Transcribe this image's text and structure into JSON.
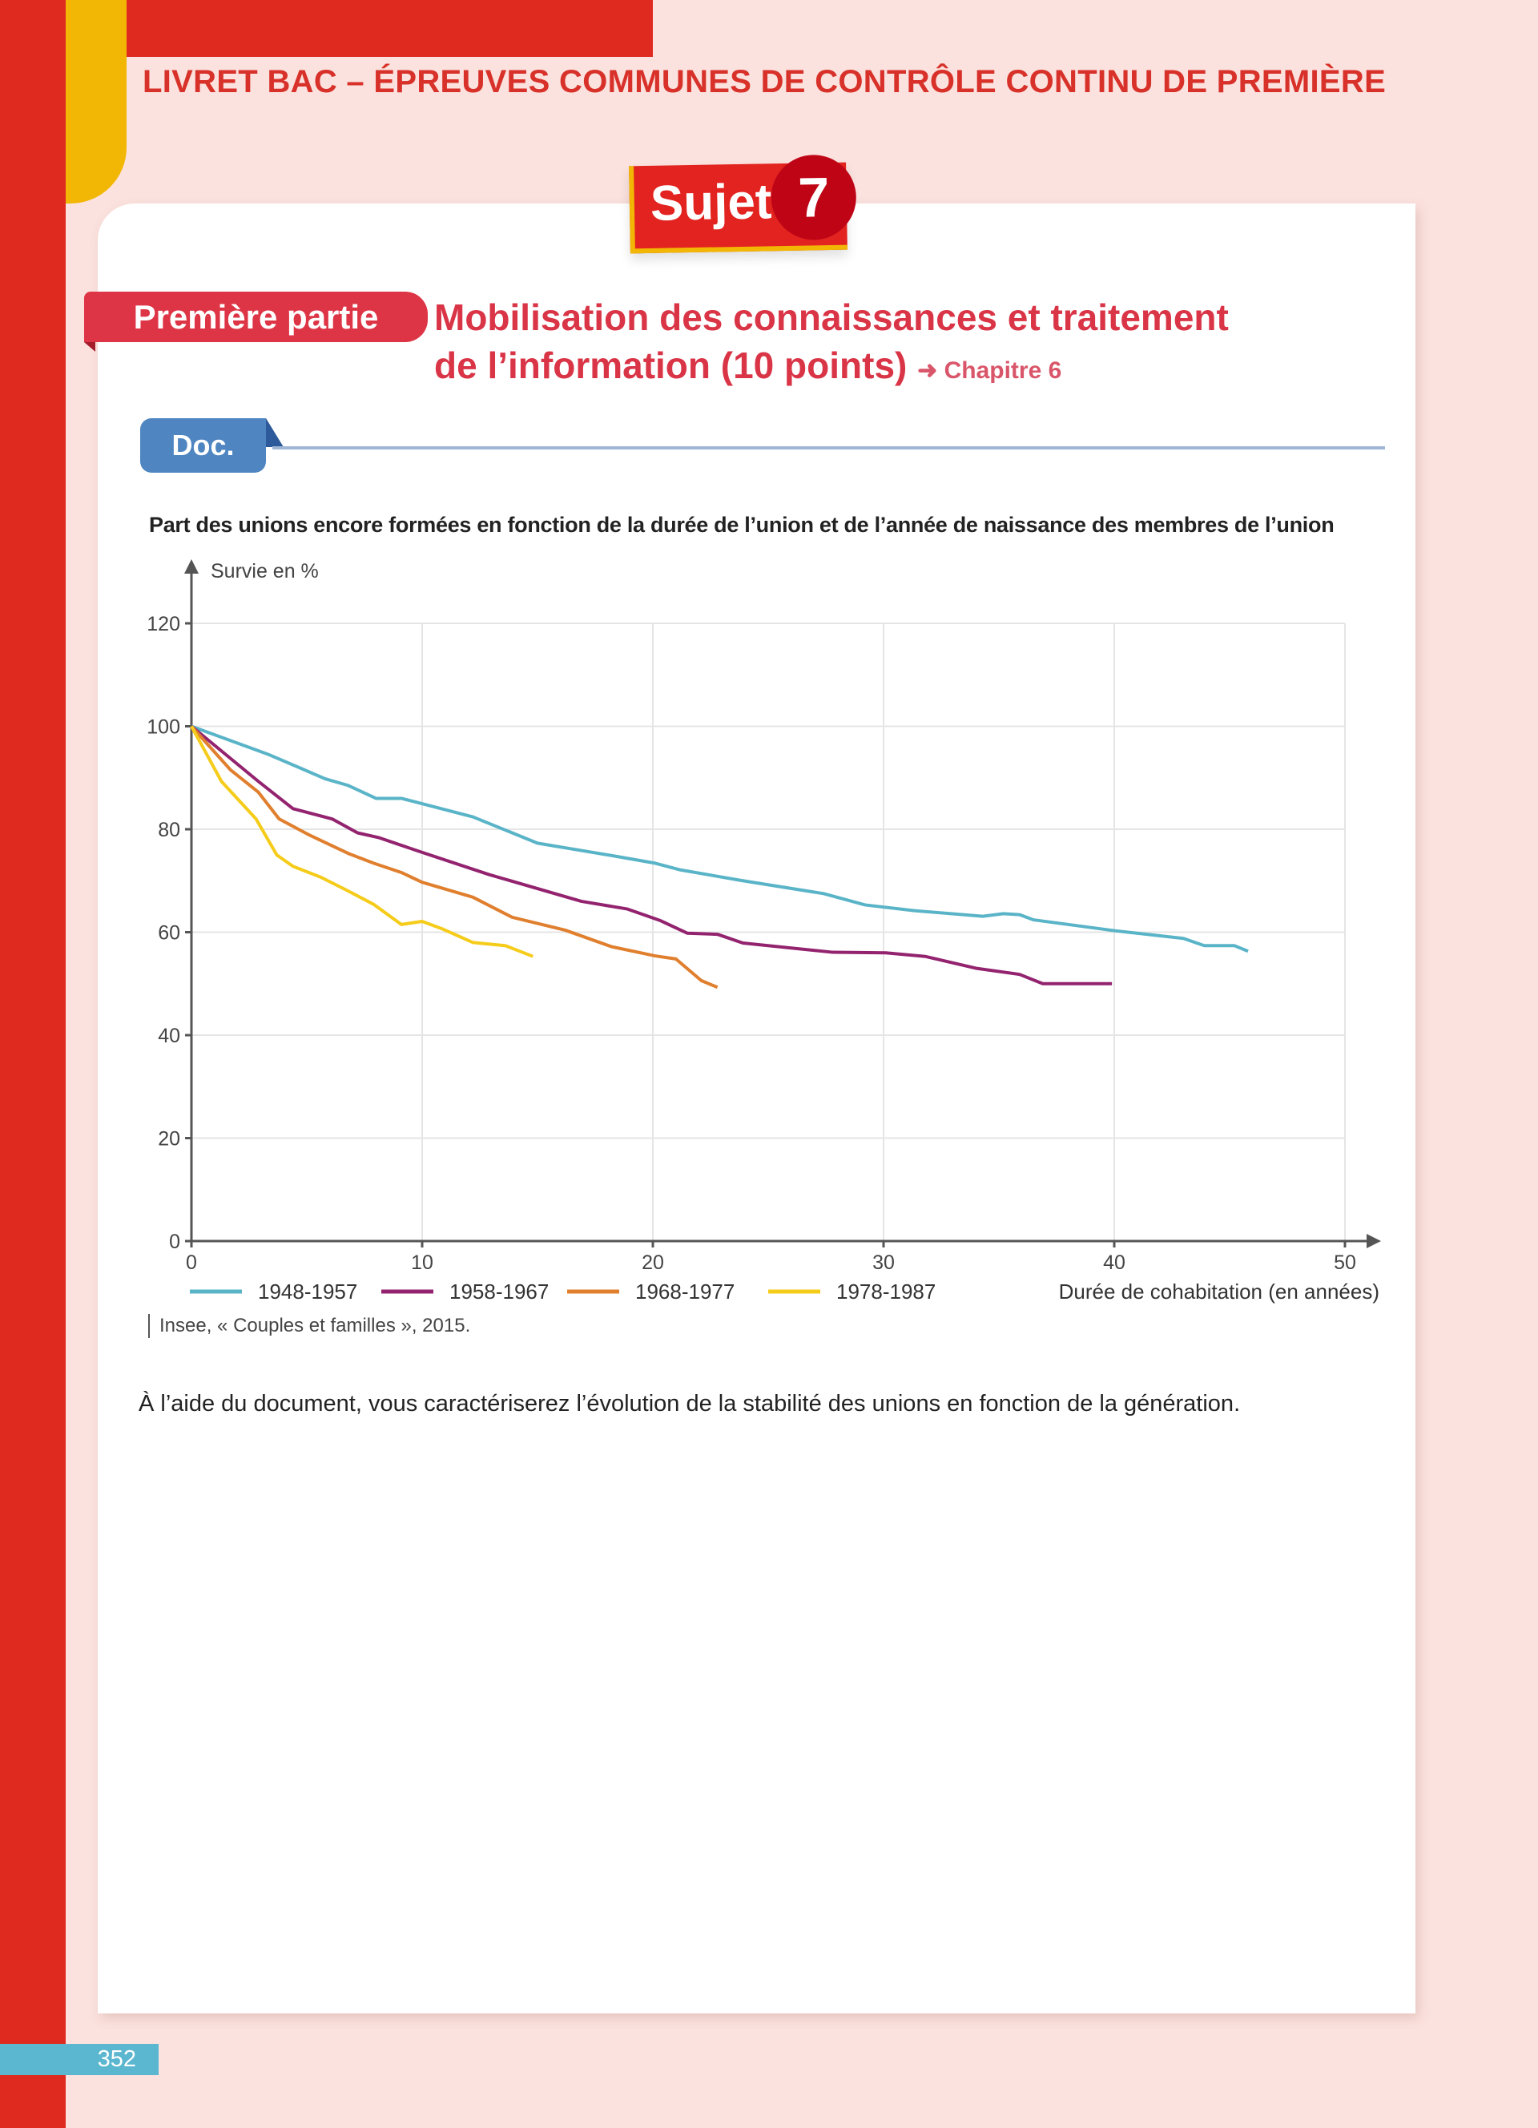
{
  "header": {
    "title": "LIVRET BAC – ÉPREUVES COMMUNES DE CONTRÔLE CONTINU DE PREMIÈRE"
  },
  "sujet": {
    "label": "Sujet",
    "number": "7"
  },
  "section": {
    "part_label": "Première partie",
    "title_line1": "Mobilisation des connaissances et traitement",
    "title_line2": "de l’information (10 points)",
    "chapter_ref": "➜ Chapitre 6"
  },
  "doc": {
    "tab_label": "Doc."
  },
  "source": "Insee, « Couples et familles », 2015.",
  "question": "À l’aide du document, vous caractériserez l’évolution de la stabilité des unions en fonction de la génération.",
  "page_number": "352",
  "colors": {
    "brand_red": "#df2a20",
    "accent_yellow": "#f2b705",
    "title_red": "#d93547",
    "doc_blue": "#4f85c1",
    "page_bg": "#fbe2de"
  },
  "chart_data": {
    "type": "line",
    "title": "Part des unions encore formées en fonction de la durée de l’union et de l’année de naissance des membres de l’union",
    "xlabel": "Durée de cohabitation (en années)",
    "ylabel": "Survie en %",
    "xlim": [
      0,
      50
    ],
    "ylim": [
      0,
      120
    ],
    "xticks": [
      "0",
      "10",
      "20",
      "30",
      "40",
      "50"
    ],
    "yticks": [
      "0",
      "20",
      "40",
      "60",
      "80",
      "100",
      "120"
    ],
    "grid": true,
    "legend_position": "bottom",
    "series": [
      {
        "name": "1948-1957",
        "color": "#5ab4c8",
        "points": [
          [
            0,
            100
          ],
          [
            3.3,
            94.6
          ],
          [
            5.8,
            89.8
          ],
          [
            6.8,
            88.5
          ],
          [
            8,
            86
          ],
          [
            9.1,
            86
          ],
          [
            12.2,
            82.4
          ],
          [
            15,
            77.3
          ],
          [
            18.2,
            74.9
          ],
          [
            20.1,
            73.4
          ],
          [
            21.2,
            72.1
          ],
          [
            23.9,
            70
          ],
          [
            27.4,
            67.5
          ],
          [
            29.2,
            65.3
          ],
          [
            31.3,
            64.2
          ],
          [
            34.3,
            63.1
          ],
          [
            35.2,
            63.6
          ],
          [
            35.9,
            63.4
          ],
          [
            36.5,
            62.4
          ],
          [
            40,
            60.3
          ],
          [
            43,
            58.8
          ],
          [
            43.9,
            57.4
          ],
          [
            45.2,
            57.4
          ],
          [
            45.8,
            56.3
          ]
        ]
      },
      {
        "name": "1958-1967",
        "color": "#93236f",
        "points": [
          [
            0,
            100
          ],
          [
            2.9,
            89.3
          ],
          [
            4.4,
            84
          ],
          [
            6.1,
            82
          ],
          [
            7.2,
            79.3
          ],
          [
            8.1,
            78.4
          ],
          [
            10,
            75.5
          ],
          [
            12.9,
            71.2
          ],
          [
            16.9,
            66
          ],
          [
            18.9,
            64.5
          ],
          [
            20.3,
            62.3
          ],
          [
            21.5,
            59.8
          ],
          [
            22.8,
            59.6
          ],
          [
            23.9,
            57.9
          ],
          [
            27.8,
            56.1
          ],
          [
            30.1,
            56
          ],
          [
            31.8,
            55.3
          ],
          [
            34,
            53
          ],
          [
            35.9,
            51.8
          ],
          [
            36.9,
            50
          ],
          [
            39.9,
            50
          ]
        ]
      },
      {
        "name": "1968-1977",
        "color": "#e07f2e",
        "points": [
          [
            0,
            100
          ],
          [
            1.7,
            91.5
          ],
          [
            2.9,
            87.2
          ],
          [
            3.8,
            82
          ],
          [
            5.1,
            78.9
          ],
          [
            6.8,
            75.3
          ],
          [
            7.9,
            73.4
          ],
          [
            9.1,
            71.6
          ],
          [
            10,
            69.7
          ],
          [
            12.2,
            66.8
          ],
          [
            13.9,
            62.9
          ],
          [
            16.2,
            60.4
          ],
          [
            18.2,
            57.2
          ],
          [
            20.1,
            55.4
          ],
          [
            21,
            54.8
          ],
          [
            22.1,
            50.6
          ],
          [
            22.8,
            49.3
          ]
        ]
      },
      {
        "name": "1978-1987",
        "color": "#f5cc1a",
        "points": [
          [
            0,
            100
          ],
          [
            1.3,
            89.3
          ],
          [
            2.8,
            82
          ],
          [
            3.7,
            75
          ],
          [
            4.4,
            72.8
          ],
          [
            5.6,
            70.7
          ],
          [
            6.8,
            68
          ],
          [
            7.9,
            65.4
          ],
          [
            9.1,
            61.5
          ],
          [
            10,
            62.1
          ],
          [
            10.9,
            60.6
          ],
          [
            12.2,
            58
          ],
          [
            13.6,
            57.4
          ],
          [
            14.8,
            55.3
          ]
        ]
      }
    ]
  }
}
